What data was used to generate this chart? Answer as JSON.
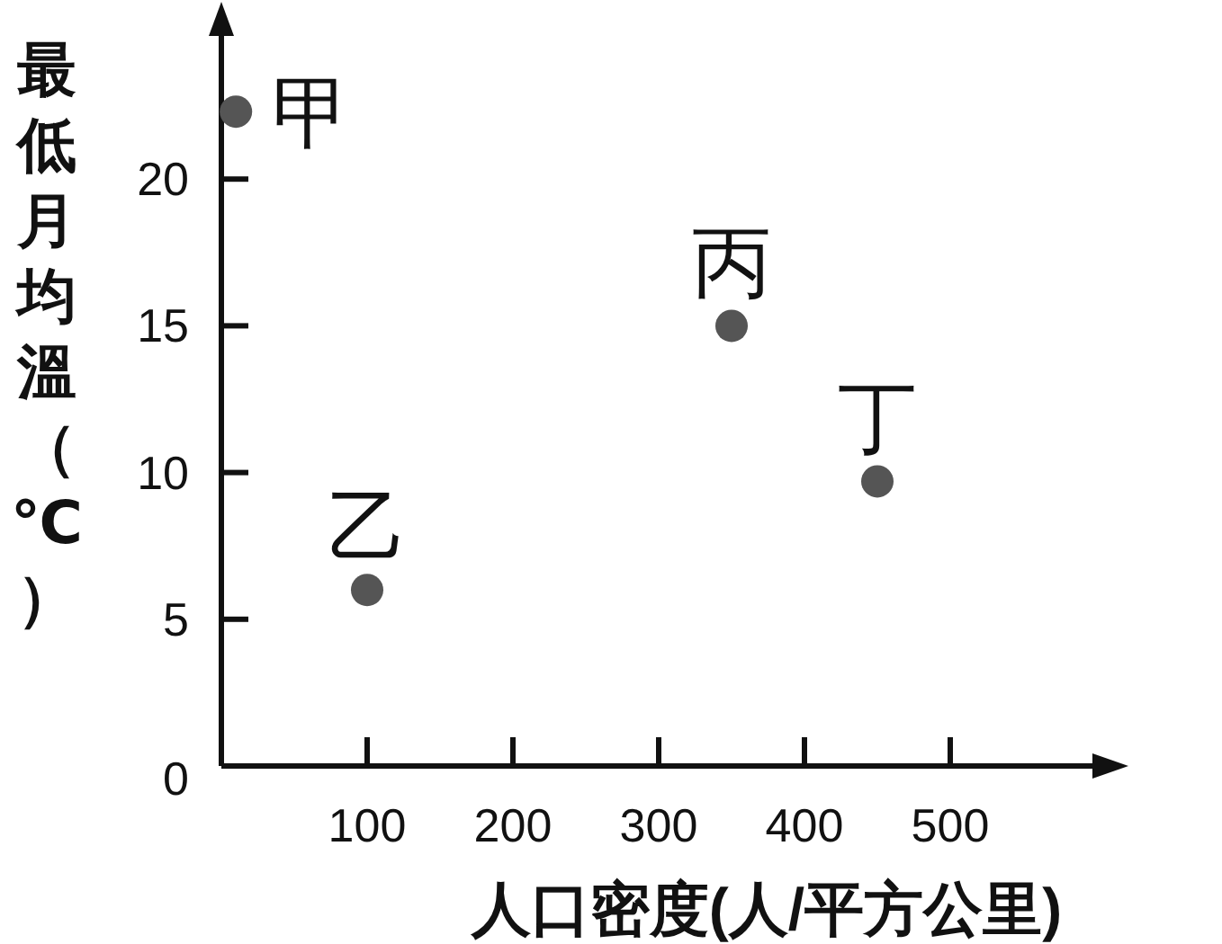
{
  "chart_data": {
    "type": "scatter",
    "xlabel": "人口密度(人/平方公里)",
    "ylabel": "最低月均溫（℃）",
    "x": [
      10,
      100,
      350,
      450
    ],
    "values": [
      22.3,
      6,
      15,
      9.7
    ],
    "color": "#555555",
    "marker": "circle",
    "xlim": [
      0,
      600
    ],
    "ylim": [
      0,
      25
    ],
    "xticks": [
      100,
      200,
      300,
      400,
      500
    ],
    "yticks": [
      0,
      5,
      10,
      15,
      20
    ],
    "annotations": [
      {
        "text": "甲",
        "x": 10,
        "y": 22.3
      },
      {
        "text": "乙",
        "x": 100,
        "y": 6
      },
      {
        "text": "丙",
        "x": 350,
        "y": 15
      },
      {
        "text": "丁",
        "x": 450,
        "y": 9.7
      }
    ]
  }
}
